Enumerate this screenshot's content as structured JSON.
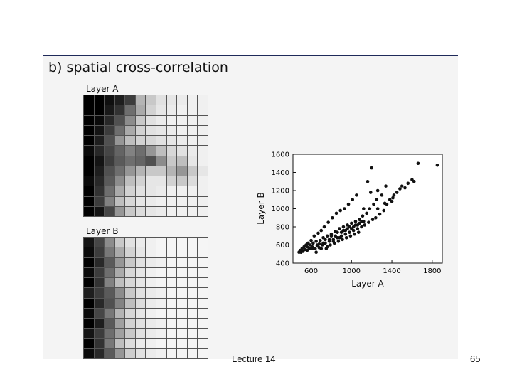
{
  "figure": {
    "title": "b) spatial cross-correlation",
    "layer_a_label": "Layer A",
    "layer_b_label": "Layer B",
    "layer_a_grid": [
      [
        0,
        0,
        15,
        30,
        60,
        180,
        200,
        225,
        230,
        235,
        240,
        240
      ],
      [
        0,
        0,
        25,
        50,
        110,
        170,
        210,
        230,
        235,
        240,
        240,
        240
      ],
      [
        0,
        10,
        40,
        80,
        140,
        200,
        225,
        235,
        240,
        240,
        240,
        240
      ],
      [
        0,
        20,
        60,
        110,
        170,
        210,
        225,
        230,
        235,
        240,
        240,
        240
      ],
      [
        0,
        30,
        80,
        150,
        190,
        210,
        215,
        225,
        230,
        235,
        240,
        240
      ],
      [
        10,
        40,
        70,
        100,
        130,
        110,
        150,
        190,
        215,
        225,
        235,
        240
      ],
      [
        0,
        20,
        60,
        90,
        110,
        100,
        80,
        140,
        200,
        190,
        230,
        240
      ],
      [
        0,
        30,
        80,
        110,
        150,
        180,
        200,
        200,
        180,
        150,
        200,
        230
      ],
      [
        10,
        40,
        90,
        140,
        190,
        210,
        230,
        230,
        210,
        200,
        220,
        240
      ],
      [
        0,
        50,
        110,
        170,
        210,
        225,
        230,
        235,
        240,
        240,
        240,
        240
      ],
      [
        0,
        60,
        130,
        190,
        215,
        230,
        235,
        240,
        240,
        240,
        240,
        240
      ],
      [
        0,
        20,
        70,
        150,
        200,
        220,
        230,
        235,
        240,
        240,
        240,
        240
      ]
    ],
    "layer_b_grid": [
      [
        20,
        70,
        140,
        200,
        225,
        235,
        240,
        245,
        245,
        245,
        245,
        245
      ],
      [
        10,
        60,
        120,
        170,
        210,
        230,
        240,
        245,
        245,
        245,
        245,
        245
      ],
      [
        0,
        40,
        90,
        150,
        200,
        225,
        235,
        240,
        245,
        245,
        245,
        245
      ],
      [
        10,
        60,
        110,
        170,
        215,
        230,
        240,
        245,
        245,
        245,
        245,
        245
      ],
      [
        0,
        50,
        130,
        190,
        215,
        230,
        240,
        245,
        245,
        245,
        245,
        245
      ],
      [
        30,
        60,
        90,
        140,
        200,
        225,
        235,
        240,
        245,
        245,
        245,
        245
      ],
      [
        0,
        40,
        80,
        130,
        190,
        220,
        235,
        240,
        245,
        245,
        245,
        245
      ],
      [
        10,
        70,
        120,
        180,
        215,
        230,
        240,
        245,
        245,
        245,
        245,
        245
      ],
      [
        0,
        30,
        90,
        160,
        210,
        225,
        235,
        240,
        245,
        245,
        245,
        245
      ],
      [
        20,
        60,
        110,
        160,
        200,
        225,
        235,
        240,
        245,
        245,
        245,
        245
      ],
      [
        0,
        50,
        120,
        190,
        220,
        235,
        240,
        245,
        245,
        245,
        245,
        245
      ],
      [
        10,
        40,
        90,
        150,
        205,
        225,
        235,
        240,
        245,
        245,
        245,
        245
      ]
    ]
  },
  "chart_data": {
    "type": "scatter",
    "xlabel": "Layer A",
    "ylabel": "Layer B",
    "xlim": [
      420,
      1900
    ],
    "ylim": [
      400,
      1600
    ],
    "xticks": [
      600,
      1000,
      1400,
      1800
    ],
    "yticks": [
      400,
      600,
      800,
      1000,
      1200,
      1400,
      1600
    ],
    "grid": false,
    "points": [
      [
        480,
        520
      ],
      [
        490,
        540
      ],
      [
        500,
        520
      ],
      [
        510,
        560
      ],
      [
        520,
        530
      ],
      [
        530,
        580
      ],
      [
        540,
        550
      ],
      [
        550,
        600
      ],
      [
        560,
        540
      ],
      [
        570,
        620
      ],
      [
        580,
        560
      ],
      [
        590,
        600
      ],
      [
        600,
        650
      ],
      [
        610,
        580
      ],
      [
        620,
        620
      ],
      [
        630,
        700
      ],
      [
        640,
        560
      ],
      [
        650,
        640
      ],
      [
        660,
        600
      ],
      [
        670,
        730
      ],
      [
        680,
        570
      ],
      [
        690,
        650
      ],
      [
        700,
        760
      ],
      [
        710,
        600
      ],
      [
        720,
        680
      ],
      [
        730,
        800
      ],
      [
        740,
        620
      ],
      [
        750,
        560
      ],
      [
        760,
        700
      ],
      [
        770,
        850
      ],
      [
        780,
        640
      ],
      [
        790,
        600
      ],
      [
        800,
        720
      ],
      [
        810,
        900
      ],
      [
        820,
        660
      ],
      [
        830,
        620
      ],
      [
        840,
        750
      ],
      [
        850,
        950
      ],
      [
        860,
        680
      ],
      [
        870,
        640
      ],
      [
        880,
        780
      ],
      [
        890,
        980
      ],
      [
        900,
        700
      ],
      [
        910,
        660
      ],
      [
        920,
        800
      ],
      [
        930,
        1000
      ],
      [
        940,
        720
      ],
      [
        950,
        680
      ],
      [
        960,
        820
      ],
      [
        970,
        1050
      ],
      [
        980,
        740
      ],
      [
        990,
        700
      ],
      [
        1000,
        840
      ],
      [
        1010,
        1100
      ],
      [
        1020,
        760
      ],
      [
        1030,
        720
      ],
      [
        1040,
        860
      ],
      [
        1050,
        1150
      ],
      [
        1060,
        780
      ],
      [
        1070,
        740
      ],
      [
        1080,
        880
      ],
      [
        1100,
        800
      ],
      [
        1110,
        920
      ],
      [
        1120,
        1000
      ],
      [
        1130,
        820
      ],
      [
        1150,
        950
      ],
      [
        1160,
        1300
      ],
      [
        1170,
        850
      ],
      [
        1180,
        1000
      ],
      [
        1200,
        1450
      ],
      [
        1210,
        880
      ],
      [
        1220,
        1050
      ],
      [
        1240,
        900
      ],
      [
        1250,
        1100
      ],
      [
        1260,
        1200
      ],
      [
        1280,
        940
      ],
      [
        1300,
        1150
      ],
      [
        1320,
        980
      ],
      [
        1350,
        1050
      ],
      [
        1380,
        1100
      ],
      [
        1400,
        1080
      ],
      [
        1420,
        1150
      ],
      [
        1450,
        1180
      ],
      [
        1480,
        1220
      ],
      [
        1500,
        1250
      ],
      [
        1530,
        1230
      ],
      [
        1560,
        1280
      ],
      [
        1600,
        1320
      ],
      [
        1620,
        1300
      ],
      [
        1660,
        1500
      ],
      [
        1850,
        1480
      ],
      [
        560,
        580
      ],
      [
        620,
        560
      ],
      [
        680,
        610
      ],
      [
        740,
        660
      ],
      [
        800,
        700
      ],
      [
        860,
        740
      ],
      [
        920,
        760
      ],
      [
        980,
        800
      ],
      [
        1040,
        820
      ],
      [
        1100,
        860
      ],
      [
        650,
        520
      ],
      [
        700,
        560
      ],
      [
        760,
        580
      ],
      [
        820,
        640
      ],
      [
        880,
        680
      ],
      [
        940,
        760
      ],
      [
        1000,
        780
      ],
      [
        1060,
        820
      ],
      [
        1120,
        860
      ],
      [
        600,
        560
      ],
      [
        660,
        590
      ],
      [
        720,
        620
      ],
      [
        780,
        660
      ],
      [
        840,
        700
      ],
      [
        900,
        740
      ],
      [
        960,
        780
      ],
      [
        1020,
        800
      ],
      [
        1080,
        840
      ],
      [
        1190,
        1180
      ],
      [
        1260,
        1000
      ],
      [
        1330,
        1060
      ],
      [
        1410,
        1120
      ],
      [
        1340,
        1250
      ]
    ]
  },
  "footer": {
    "text": "Lecture 14",
    "page_number": "65"
  }
}
